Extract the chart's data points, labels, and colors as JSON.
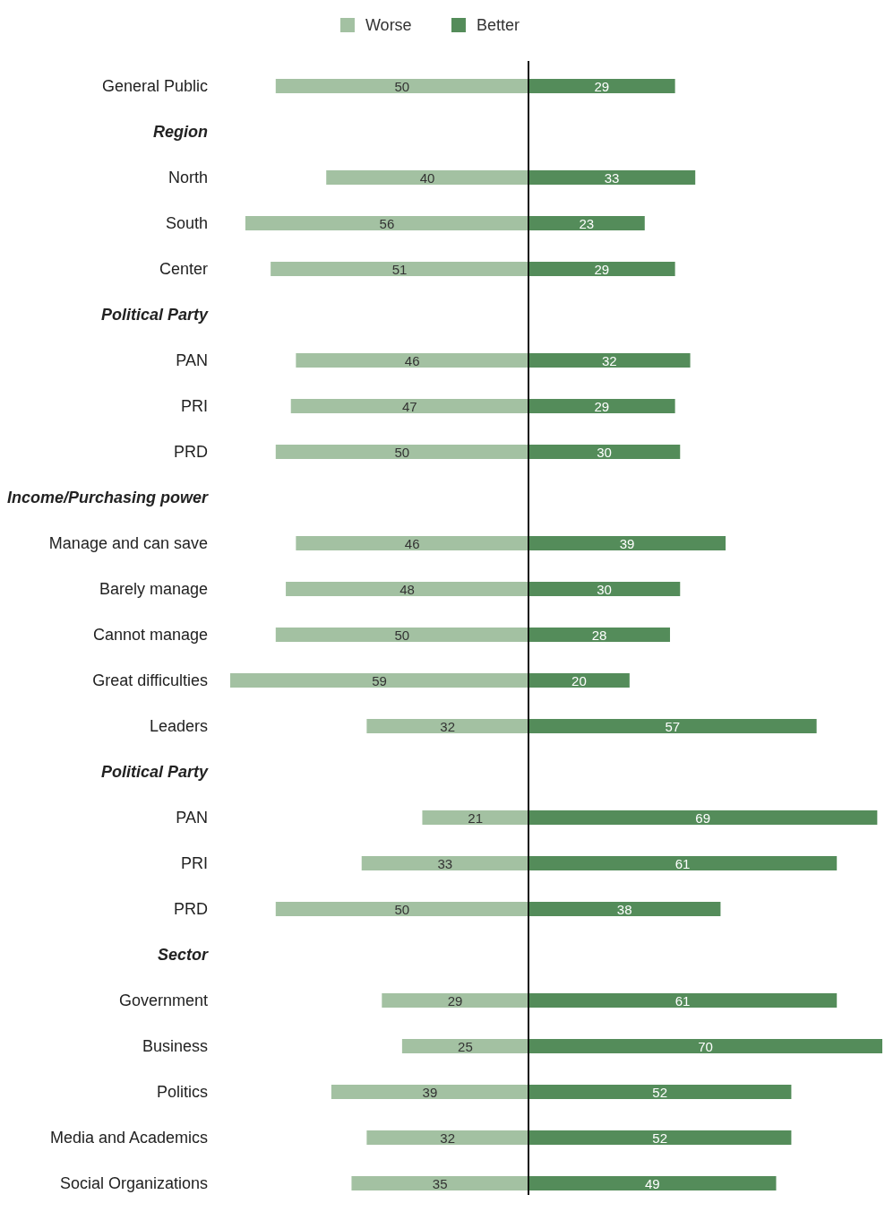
{
  "chart_data": [
    {
      "type": "bar",
      "orientation": "horizontal",
      "legend": "top",
      "tick_labels": "y",
      "data_labels": true,
      "categories": [
        "General Public",
        "Region",
        "North",
        "South",
        "Center",
        "Political Party",
        "PAN",
        "PRI",
        "PRD",
        "Income/Purchasing power",
        "Manage and can save",
        "Barely manage",
        "Cannot manage",
        "Great difficulties",
        "Leaders",
        "Political Party",
        "PAN",
        "PRI",
        "PRD",
        "Sector",
        "Government",
        "Business",
        "Politics",
        "Media and Academics",
        "Social Organizations"
      ],
      "series": [
        {
          "name": "Worse",
          "color": "#a3c1a2",
          "values": [
            50,
            null,
            40,
            56,
            51,
            null,
            46,
            47,
            50,
            null,
            46,
            48,
            50,
            59,
            32,
            null,
            21,
            33,
            50,
            null,
            29,
            25,
            39,
            32,
            35
          ]
        }
      ]
    },
    {
      "type": "bar",
      "orientation": "horizontal",
      "legend": "top",
      "tick_labels": false,
      "data_labels": true,
      "categories": [
        null,
        null,
        null,
        null,
        null,
        null,
        null,
        null,
        null,
        null,
        null,
        null,
        null,
        null,
        null,
        null,
        null,
        null,
        null,
        null,
        null,
        null,
        null,
        null,
        null
      ],
      "series": [
        {
          "name": "Better",
          "color": "#548c5a",
          "values": [
            29,
            null,
            33,
            23,
            29,
            null,
            32,
            29,
            30,
            null,
            39,
            30,
            28,
            20,
            57,
            null,
            69,
            61,
            38,
            null,
            61,
            70,
            52,
            52,
            49
          ]
        }
      ]
    }
  ]
}
